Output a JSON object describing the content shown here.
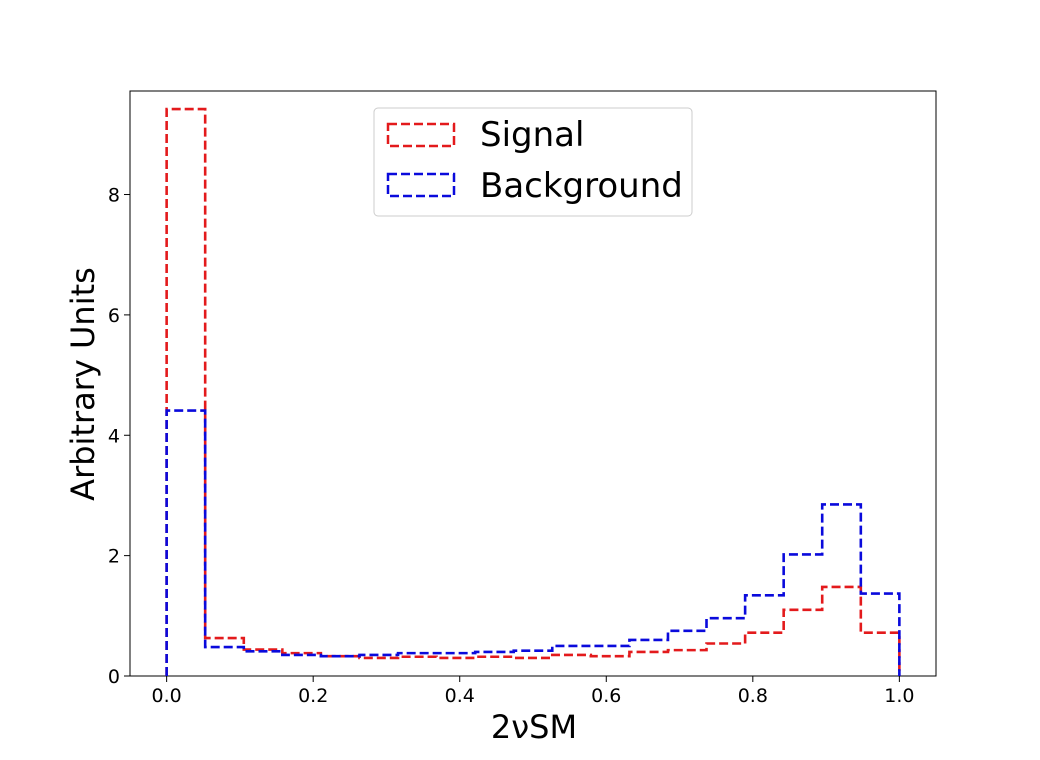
{
  "chart_data": {
    "type": "step-histogram",
    "xlabel": "2νSM",
    "ylabel": "Arbitrary Units",
    "xlim": [
      -0.05,
      1.05
    ],
    "ylim": [
      0,
      9.72
    ],
    "xticks": [
      0.0,
      0.2,
      0.4,
      0.6,
      0.8,
      1.0
    ],
    "xtick_labels": [
      "0.0",
      "0.2",
      "0.4",
      "0.6",
      "0.8",
      "1.0"
    ],
    "yticks": [
      0,
      2,
      4,
      6,
      8
    ],
    "ytick_labels": [
      "0",
      "2",
      "4",
      "6",
      "8"
    ],
    "bin_edges": [
      0.0,
      0.0526,
      0.1053,
      0.1579,
      0.2105,
      0.2632,
      0.3158,
      0.3684,
      0.4211,
      0.4737,
      0.5263,
      0.5789,
      0.6316,
      0.6842,
      0.7368,
      0.7895,
      0.8421,
      0.8947,
      0.9474,
      1.0
    ],
    "grid": false,
    "legend_position": "top-center",
    "series": [
      {
        "name": "Signal",
        "color": "#e31a1c",
        "linestyle": "dashed",
        "values": [
          9.42,
          0.63,
          0.44,
          0.38,
          0.33,
          0.3,
          0.32,
          0.3,
          0.32,
          0.3,
          0.35,
          0.33,
          0.4,
          0.43,
          0.54,
          0.72,
          1.1,
          1.48,
          0.72
        ]
      },
      {
        "name": "Background",
        "color": "#0a0adc",
        "linestyle": "dashed",
        "values": [
          4.41,
          0.48,
          0.41,
          0.35,
          0.33,
          0.35,
          0.38,
          0.38,
          0.4,
          0.42,
          0.5,
          0.5,
          0.6,
          0.75,
          0.96,
          1.34,
          2.02,
          2.85,
          1.37
        ]
      }
    ]
  }
}
